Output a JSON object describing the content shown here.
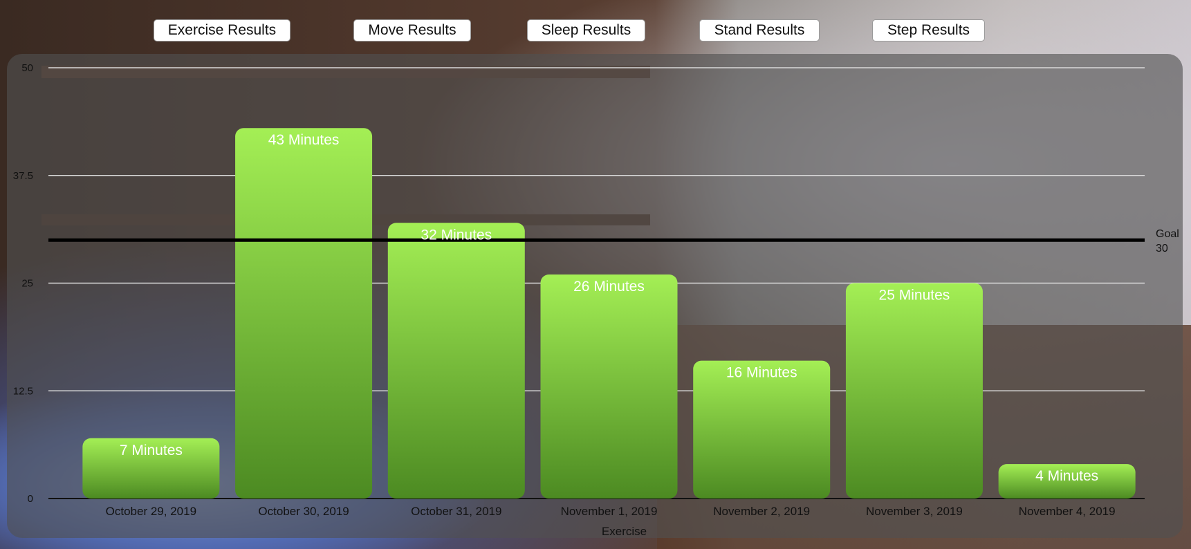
{
  "tabs": [
    {
      "label": "Exercise Results"
    },
    {
      "label": "Move Results"
    },
    {
      "label": "Sleep Results"
    },
    {
      "label": "Stand Results"
    },
    {
      "label": "Step Results"
    }
  ],
  "colors": {
    "bar_top": "#a4ef55",
    "bar_bottom": "#4c8a22",
    "goal_line": "#000000",
    "grid": "#d9d9d9"
  },
  "chart_data": {
    "type": "bar",
    "categories": [
      "October 29, 2019",
      "October 30, 2019",
      "October 31, 2019",
      "November 1, 2019",
      "November 2, 2019",
      "November 3, 2019",
      "November 4, 2019"
    ],
    "values": [
      7,
      43,
      32,
      26,
      16,
      25,
      4
    ],
    "data_labels": [
      "7 Minutes",
      "43 Minutes",
      "32 Minutes",
      "26 Minutes",
      "16 Minutes",
      "25 Minutes",
      "4 Minutes"
    ],
    "xlabel": "Exercise",
    "ylabel": "",
    "ylim": [
      0,
      50
    ],
    "yticks": [
      0,
      12.5,
      25,
      37.5,
      50
    ],
    "ytick_labels": [
      "0",
      "12.5",
      "25",
      "37.5",
      "50"
    ],
    "goal": {
      "value": 30,
      "label": "Goal",
      "value_label": "30"
    },
    "grid": true
  }
}
